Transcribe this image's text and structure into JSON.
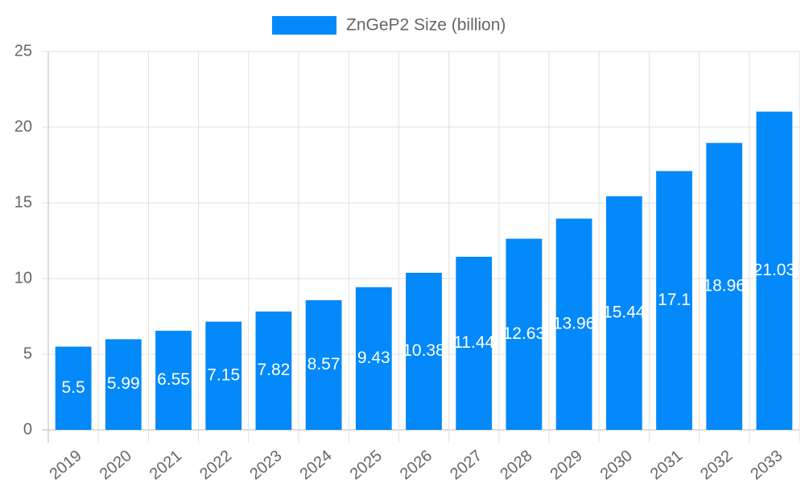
{
  "chart_data": {
    "type": "bar",
    "legend": "ZnGeP2 Size (billion)",
    "categories": [
      "2019",
      "2020",
      "2021",
      "2022",
      "2023",
      "2024",
      "2025",
      "2026",
      "2027",
      "2028",
      "2029",
      "2030",
      "2031",
      "2032",
      "2033"
    ],
    "values": [
      5.5,
      5.99,
      6.55,
      7.15,
      7.82,
      8.57,
      9.43,
      10.38,
      11.44,
      12.63,
      13.96,
      15.44,
      17.1,
      18.96,
      21.03
    ],
    "color": "#0389f9",
    "ylim": [
      0,
      25
    ],
    "yticks": [
      0,
      5,
      10,
      15,
      20,
      25
    ],
    "grid": true
  }
}
